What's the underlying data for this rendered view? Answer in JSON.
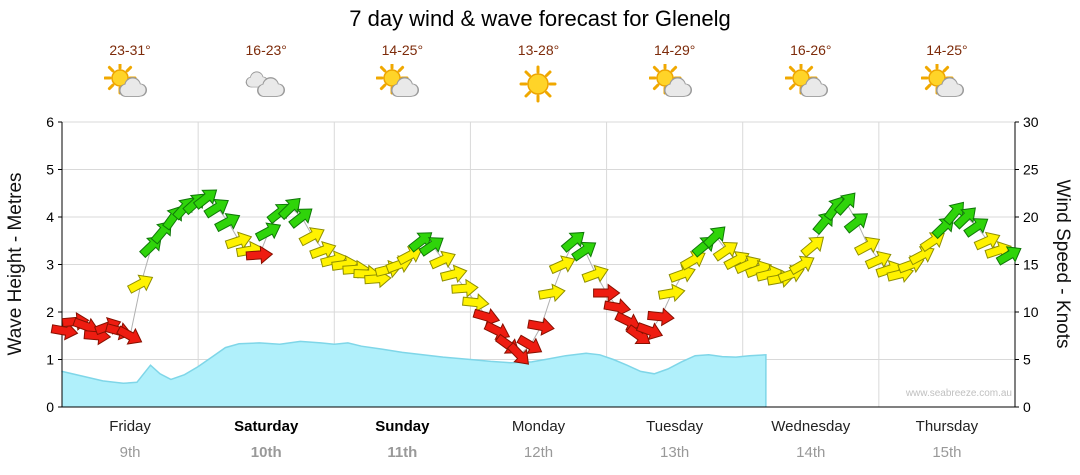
{
  "title": "7 day wind & wave forecast for Glenelg",
  "watermark": "www.seabreeze.com.au",
  "axes": {
    "left_title": "Wave Height - Metres",
    "right_title": "Wind Speed - Knots",
    "wave_ticks": [
      0,
      1,
      2,
      3,
      4,
      5,
      6
    ],
    "wind_ticks": [
      0,
      5,
      10,
      15,
      20,
      25,
      30
    ]
  },
  "days": [
    {
      "name": "Friday",
      "date": "9th",
      "temp": "23-31°",
      "icon": "partly-cloudy",
      "weekend": false
    },
    {
      "name": "Saturday",
      "date": "10th",
      "temp": "16-23°",
      "icon": "cloudy",
      "weekend": true
    },
    {
      "name": "Sunday",
      "date": "11th",
      "temp": "14-25°",
      "icon": "partly-cloudy",
      "weekend": true
    },
    {
      "name": "Monday",
      "date": "12th",
      "temp": "13-28°",
      "icon": "sunny",
      "weekend": false
    },
    {
      "name": "Tuesday",
      "date": "13th",
      "temp": "14-29°",
      "icon": "partly-cloudy",
      "weekend": false
    },
    {
      "name": "Wednesday",
      "date": "14th",
      "temp": "16-26°",
      "icon": "partly-cloudy",
      "weekend": false
    },
    {
      "name": "Thursday",
      "date": "15th",
      "temp": "14-25°",
      "icon": "partly-cloudy",
      "weekend": false
    }
  ],
  "colors": {
    "temp_text": "#7d2b0a",
    "date_text": "#999999",
    "grid": "#d9d9d9",
    "axis": "#000000",
    "wind_line": "#b0b0b0",
    "wave_fill": "#b0f0fb",
    "wave_edge": "#7fd6e8",
    "arrow_red": "#ee1c11",
    "arrow_red_dark": "#871000",
    "arrow_yellow": "#fff200",
    "arrow_yellow_dark": "#8f8f00",
    "arrow_green": "#2fd40a",
    "arrow_green_dark": "#0f7708",
    "sun_fill": "#ffd428",
    "sun_stroke": "#eda400",
    "sun_ray": "#f0a800",
    "cloud_fill": "#e9e9e9",
    "cloud_stroke": "#9a9a9a"
  },
  "chart_data": {
    "type": "combo-area-plus-wind-arrows",
    "x_unit": "days from Friday 00:00 (1.0 = one day)",
    "x_range": [
      0,
      7
    ],
    "wave_series": {
      "name": "Wave Height",
      "unit": "metres",
      "y_range": [
        0,
        6
      ],
      "points_dh": [
        [
          0.0,
          0.75
        ],
        [
          0.15,
          0.65
        ],
        [
          0.3,
          0.55
        ],
        [
          0.45,
          0.5
        ],
        [
          0.55,
          0.52
        ],
        [
          0.65,
          0.88
        ],
        [
          0.72,
          0.7
        ],
        [
          0.8,
          0.58
        ],
        [
          0.9,
          0.68
        ],
        [
          1.0,
          0.85
        ],
        [
          1.1,
          1.05
        ],
        [
          1.2,
          1.25
        ],
        [
          1.3,
          1.33
        ],
        [
          1.45,
          1.35
        ],
        [
          1.6,
          1.32
        ],
        [
          1.75,
          1.38
        ],
        [
          1.9,
          1.35
        ],
        [
          2.0,
          1.32
        ],
        [
          2.1,
          1.35
        ],
        [
          2.2,
          1.28
        ],
        [
          2.35,
          1.22
        ],
        [
          2.5,
          1.15
        ],
        [
          2.65,
          1.1
        ],
        [
          2.8,
          1.05
        ],
        [
          3.0,
          1.0
        ],
        [
          3.15,
          0.96
        ],
        [
          3.3,
          0.93
        ],
        [
          3.45,
          0.95
        ],
        [
          3.55,
          1.0
        ],
        [
          3.7,
          1.08
        ],
        [
          3.85,
          1.13
        ],
        [
          3.95,
          1.1
        ],
        [
          4.05,
          1.0
        ],
        [
          4.15,
          0.88
        ],
        [
          4.25,
          0.75
        ],
        [
          4.35,
          0.7
        ],
        [
          4.45,
          0.8
        ],
        [
          4.55,
          0.95
        ],
        [
          4.65,
          1.08
        ],
        [
          4.75,
          1.1
        ],
        [
          4.85,
          1.06
        ],
        [
          4.95,
          1.05
        ],
        [
          5.05,
          1.08
        ],
        [
          5.17,
          1.1
        ]
      ]
    },
    "wind_series": {
      "name": "Wind Speed",
      "unit": "knots",
      "y_range": [
        0,
        30
      ],
      "point_format": [
        "day",
        "knots",
        "arrow_direction_deg_clockwise_from_up",
        "color"
      ],
      "points": [
        [
          0.02,
          8,
          100,
          "r"
        ],
        [
          0.1,
          9,
          85,
          "r"
        ],
        [
          0.18,
          8.5,
          110,
          "r"
        ],
        [
          0.26,
          7.5,
          95,
          "r"
        ],
        [
          0.34,
          8.5,
          70,
          "r"
        ],
        [
          0.42,
          8,
          105,
          "r"
        ],
        [
          0.5,
          7.5,
          118,
          "r"
        ],
        [
          0.58,
          13,
          62,
          "y"
        ],
        [
          0.66,
          17,
          46,
          "g"
        ],
        [
          0.74,
          18.5,
          40,
          "g"
        ],
        [
          0.82,
          20,
          36,
          "g"
        ],
        [
          0.9,
          21,
          42,
          "g"
        ],
        [
          0.98,
          21.5,
          48,
          "g"
        ],
        [
          1.06,
          22,
          52,
          "g"
        ],
        [
          1.14,
          21,
          58,
          "g"
        ],
        [
          1.22,
          19.5,
          62,
          "g"
        ],
        [
          1.3,
          17.5,
          72,
          "y"
        ],
        [
          1.38,
          16.5,
          80,
          "y"
        ],
        [
          1.45,
          16,
          86,
          "r"
        ],
        [
          1.52,
          18.5,
          62,
          "g"
        ],
        [
          1.6,
          20.5,
          52,
          "g"
        ],
        [
          1.68,
          21,
          46,
          "g"
        ],
        [
          1.76,
          20,
          52,
          "g"
        ],
        [
          1.84,
          18,
          62,
          "y"
        ],
        [
          1.92,
          16.5,
          70,
          "y"
        ],
        [
          2.0,
          15.5,
          76,
          "y"
        ],
        [
          2.08,
          15,
          82,
          "y"
        ],
        [
          2.16,
          14.5,
          86,
          "y"
        ],
        [
          2.24,
          14,
          92,
          "y"
        ],
        [
          2.32,
          13.5,
          86,
          "y"
        ],
        [
          2.4,
          14.5,
          76,
          "y"
        ],
        [
          2.48,
          15,
          70,
          "y"
        ],
        [
          2.56,
          16,
          62,
          "y"
        ],
        [
          2.64,
          17.5,
          52,
          "g"
        ],
        [
          2.72,
          17,
          56,
          "g"
        ],
        [
          2.8,
          15.5,
          66,
          "y"
        ],
        [
          2.88,
          14,
          76,
          "y"
        ],
        [
          2.96,
          12.5,
          86,
          "y"
        ],
        [
          3.04,
          11,
          96,
          "y"
        ],
        [
          3.12,
          9.5,
          106,
          "r"
        ],
        [
          3.2,
          8,
          116,
          "r"
        ],
        [
          3.28,
          6.5,
          126,
          "r"
        ],
        [
          3.36,
          5.5,
          136,
          "r"
        ],
        [
          3.44,
          6.5,
          120,
          "r"
        ],
        [
          3.52,
          8.5,
          100,
          "r"
        ],
        [
          3.6,
          12,
          80,
          "y"
        ],
        [
          3.68,
          15,
          66,
          "y"
        ],
        [
          3.76,
          17.5,
          50,
          "g"
        ],
        [
          3.84,
          16.5,
          56,
          "g"
        ],
        [
          3.92,
          14,
          70,
          "y"
        ],
        [
          4.0,
          12,
          90,
          "r"
        ],
        [
          4.08,
          10.5,
          100,
          "r"
        ],
        [
          4.16,
          9,
          116,
          "r"
        ],
        [
          4.24,
          7.5,
          126,
          "r"
        ],
        [
          4.32,
          8,
          110,
          "r"
        ],
        [
          4.4,
          9.5,
          96,
          "r"
        ],
        [
          4.48,
          12,
          80,
          "y"
        ],
        [
          4.56,
          14,
          70,
          "y"
        ],
        [
          4.64,
          15.5,
          60,
          "y"
        ],
        [
          4.72,
          17,
          50,
          "g"
        ],
        [
          4.8,
          18,
          46,
          "g"
        ],
        [
          4.88,
          16.5,
          56,
          "y"
        ],
        [
          4.96,
          15.5,
          62,
          "y"
        ],
        [
          5.04,
          15,
          66,
          "y"
        ],
        [
          5.12,
          14.5,
          70,
          "y"
        ],
        [
          5.2,
          14,
          76,
          "y"
        ],
        [
          5.28,
          13.5,
          80,
          "y"
        ],
        [
          5.36,
          14,
          70,
          "y"
        ],
        [
          5.44,
          15,
          60,
          "y"
        ],
        [
          5.52,
          17,
          50,
          "y"
        ],
        [
          5.6,
          19.5,
          40,
          "g"
        ],
        [
          5.68,
          21,
          36,
          "g"
        ],
        [
          5.76,
          21.5,
          42,
          "g"
        ],
        [
          5.84,
          19.5,
          52,
          "g"
        ],
        [
          5.92,
          17,
          62,
          "y"
        ],
        [
          6.0,
          15.5,
          66,
          "y"
        ],
        [
          6.08,
          14.5,
          72,
          "y"
        ],
        [
          6.16,
          14,
          76,
          "y"
        ],
        [
          6.24,
          15,
          70,
          "y"
        ],
        [
          6.32,
          16,
          62,
          "y"
        ],
        [
          6.4,
          17.5,
          56,
          "y"
        ],
        [
          6.48,
          19,
          46,
          "g"
        ],
        [
          6.56,
          20.5,
          40,
          "g"
        ],
        [
          6.64,
          20,
          46,
          "g"
        ],
        [
          6.72,
          19,
          56,
          "g"
        ],
        [
          6.8,
          17.5,
          66,
          "y"
        ],
        [
          6.88,
          16.5,
          72,
          "y"
        ],
        [
          6.96,
          16,
          60,
          "g"
        ]
      ]
    }
  }
}
